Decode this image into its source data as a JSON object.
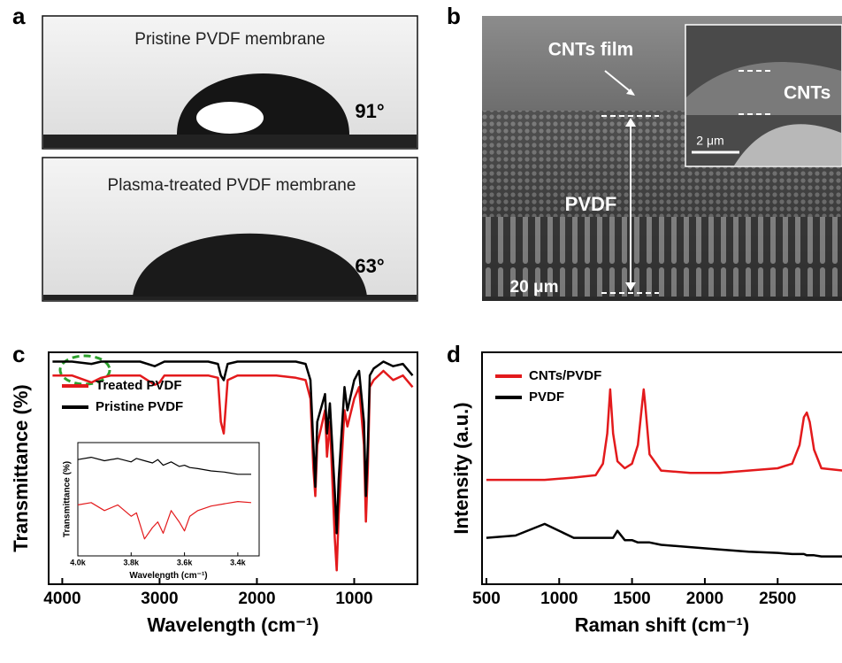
{
  "panels": {
    "a": {
      "label": "a",
      "top_caption": "Pristine PVDF membrane",
      "top_angle": "91°",
      "bottom_caption": "Plasma-treated PVDF membrane",
      "bottom_angle": "63°"
    },
    "b": {
      "label": "b",
      "film_label": "CNTs film",
      "membrane_label": "PVDF",
      "scale_bar": "20 μm",
      "inset_label": "CNTs",
      "inset_scale_bar": "2 μm"
    },
    "c": {
      "label": "c"
    },
    "d": {
      "label": "d"
    }
  },
  "chart_data": [
    {
      "type": "line",
      "ylabel": "Transmittance (%)",
      "xlabel": "Wavelength (cm⁻¹)",
      "xlim": [
        4140,
        350
      ],
      "ylim": [
        0,
        100
      ],
      "xticks": [
        4000,
        3000,
        2000,
        1000
      ],
      "legend": "upper-left",
      "x": [
        4100,
        3900,
        3700,
        3600,
        3500,
        3200,
        3050,
        3000,
        2950,
        2800,
        2500,
        2400,
        2370,
        2340,
        2300,
        2200,
        2000,
        1800,
        1600,
        1500,
        1450,
        1420,
        1400,
        1380,
        1300,
        1280,
        1250,
        1200,
        1180,
        1160,
        1100,
        1070,
        1000,
        950,
        900,
        880,
        860,
        840,
        800,
        700,
        600,
        500,
        400
      ],
      "series": [
        {
          "name": "Treated PVDF",
          "color": "#e31a1c",
          "values": [
            90,
            90,
            87,
            89,
            90,
            90,
            86,
            87,
            90,
            90,
            90,
            89,
            70,
            65,
            88,
            90,
            90,
            90,
            89,
            88,
            80,
            50,
            38,
            60,
            75,
            55,
            70,
            20,
            6,
            30,
            75,
            68,
            80,
            85,
            60,
            27,
            50,
            85,
            88,
            92,
            88,
            90,
            85
          ]
        },
        {
          "name": "Pristine PVDF",
          "color": "#000000",
          "values": [
            96,
            96,
            95,
            96,
            96,
            96,
            94,
            95,
            96,
            96,
            96,
            95,
            90,
            88,
            95,
            96,
            96,
            96,
            96,
            95,
            88,
            60,
            42,
            70,
            82,
            65,
            78,
            40,
            22,
            45,
            85,
            75,
            88,
            92,
            70,
            38,
            60,
            90,
            93,
            96,
            94,
            95,
            90
          ]
        }
      ]
    },
    {
      "type": "line",
      "ylabel": "Transmittance (%)",
      "xlabel": "Wavelength (cm⁻¹)",
      "xlim": [
        4000,
        3320
      ],
      "ylim": [
        0,
        100
      ],
      "xticks": [
        {
          "value": 4000,
          "label": "4.0k"
        },
        {
          "value": 3800,
          "label": "3.8k"
        },
        {
          "value": 3600,
          "label": "3.6k"
        },
        {
          "value": 3400,
          "label": "3.4k"
        }
      ],
      "x": [
        4000,
        3950,
        3900,
        3850,
        3800,
        3780,
        3750,
        3720,
        3700,
        3680,
        3650,
        3620,
        3600,
        3580,
        3550,
        3500,
        3450,
        3400,
        3350
      ],
      "series": [
        {
          "color": "#000000",
          "values": [
            85,
            87,
            84,
            86,
            83,
            86,
            84,
            82,
            85,
            80,
            83,
            79,
            80,
            78,
            77,
            75,
            74,
            72,
            72
          ]
        },
        {
          "color": "#e31a1c",
          "values": [
            45,
            47,
            40,
            45,
            35,
            38,
            15,
            25,
            30,
            20,
            40,
            30,
            22,
            35,
            40,
            44,
            46,
            48,
            47
          ]
        }
      ]
    },
    {
      "type": "line",
      "ylabel": "Intensity (a.u.)",
      "xlabel": "Raman shift (cm⁻¹)",
      "xlim": [
        470,
        2960
      ],
      "ylim": [
        0,
        10
      ],
      "xticks": [
        500,
        1000,
        1500,
        2000,
        2500
      ],
      "legend": "upper-left",
      "x": [
        500,
        700,
        900,
        1100,
        1250,
        1300,
        1330,
        1350,
        1370,
        1400,
        1450,
        1500,
        1540,
        1570,
        1580,
        1590,
        1620,
        1700,
        1900,
        2100,
        2300,
        2500,
        2600,
        2650,
        2680,
        2700,
        2720,
        2750,
        2800,
        2950
      ],
      "series": [
        {
          "name": "CNTs/PVDF",
          "color": "#e31a1c",
          "values": [
            4.5,
            4.5,
            4.5,
            4.6,
            4.7,
            5.2,
            6.5,
            8.4,
            6.5,
            5.3,
            5.0,
            5.2,
            6.0,
            7.8,
            8.4,
            7.8,
            5.6,
            4.9,
            4.8,
            4.8,
            4.9,
            5.0,
            5.2,
            6.0,
            7.2,
            7.4,
            7.0,
            5.8,
            5.0,
            4.9
          ]
        },
        {
          "name": "PVDF",
          "color": "#000000",
          "values": [
            2.0,
            2.1,
            2.6,
            2.0,
            2.0,
            2.0,
            2.0,
            2.0,
            2.0,
            2.3,
            1.9,
            1.9,
            1.8,
            1.8,
            1.8,
            1.8,
            1.8,
            1.7,
            1.6,
            1.5,
            1.4,
            1.35,
            1.3,
            1.3,
            1.3,
            1.25,
            1.25,
            1.25,
            1.2,
            1.2
          ]
        }
      ]
    }
  ]
}
